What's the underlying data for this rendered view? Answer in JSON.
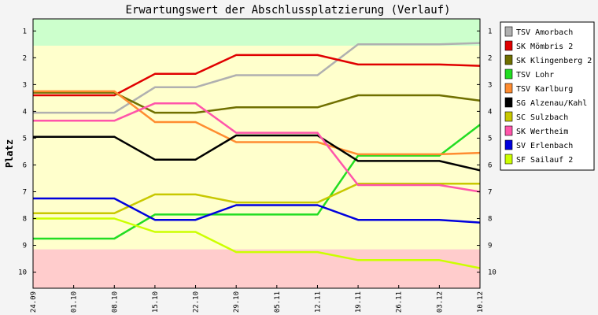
{
  "chart_data": {
    "type": "line",
    "title": "Erwartungswert der Abschlussplatzierung (Verlauf)",
    "xlabel": "",
    "ylabel": "Platz",
    "ylim": [
      0.55,
      10.6
    ],
    "y_inverted": true,
    "yticks": [
      1,
      2,
      3,
      4,
      5,
      6,
      7,
      8,
      9,
      10
    ],
    "categories": [
      "24.09",
      "01.10",
      "08.10",
      "15.10",
      "22.10",
      "29.10",
      "05.11",
      "12.11",
      "19.11",
      "26.11",
      "03.12",
      "10.12"
    ],
    "zones": [
      {
        "from": 0.55,
        "to": 1.55,
        "color": "#ccffcc"
      },
      {
        "from": 1.55,
        "to": 9.15,
        "color": "#ffffcc"
      },
      {
        "from": 9.15,
        "to": 10.6,
        "color": "#ffcccc"
      }
    ],
    "grid": false,
    "legend_position": "right",
    "series": [
      {
        "name": "TSV Amorbach",
        "color": "#b0b0b0",
        "values": [
          4.05,
          4.05,
          4.05,
          3.1,
          3.1,
          2.65,
          2.65,
          2.65,
          1.5,
          1.5,
          1.5,
          1.45
        ]
      },
      {
        "name": "SK Mömbris 2",
        "color": "#e00000",
        "values": [
          3.4,
          3.4,
          3.4,
          2.6,
          2.6,
          1.9,
          1.9,
          1.9,
          2.25,
          2.25,
          2.25,
          2.3
        ]
      },
      {
        "name": "SK Klingenberg 2",
        "color": "#707000",
        "values": [
          3.3,
          3.3,
          3.3,
          4.05,
          4.05,
          3.85,
          3.85,
          3.85,
          3.4,
          3.4,
          3.4,
          3.6
        ]
      },
      {
        "name": "TSV Lohr",
        "color": "#22dd22",
        "values": [
          8.75,
          8.75,
          8.75,
          7.85,
          7.85,
          7.85,
          7.85,
          7.85,
          5.65,
          5.65,
          5.65,
          4.5
        ]
      },
      {
        "name": "TSV Karlburg",
        "color": "#ff8c30",
        "values": [
          3.25,
          3.25,
          3.25,
          4.4,
          4.4,
          5.15,
          5.15,
          5.15,
          5.6,
          5.6,
          5.6,
          5.55
        ]
      },
      {
        "name": "SG Alzenau/Kahl",
        "color": "#000000",
        "values": [
          4.95,
          4.95,
          4.95,
          5.8,
          5.8,
          4.9,
          4.9,
          4.9,
          5.85,
          5.85,
          5.85,
          6.2
        ]
      },
      {
        "name": "SC Sulzbach",
        "color": "#c8c800",
        "values": [
          7.8,
          7.8,
          7.8,
          7.1,
          7.1,
          7.4,
          7.4,
          7.4,
          6.7,
          6.7,
          6.7,
          6.7
        ]
      },
      {
        "name": "SK Wertheim",
        "color": "#ff55aa",
        "values": [
          4.35,
          4.35,
          4.35,
          3.7,
          3.7,
          4.8,
          4.8,
          4.8,
          6.75,
          6.75,
          6.75,
          7.0
        ]
      },
      {
        "name": "SV Erlenbach",
        "color": "#0000dd",
        "values": [
          7.25,
          7.25,
          7.25,
          8.05,
          8.05,
          7.5,
          7.5,
          7.5,
          8.05,
          8.05,
          8.05,
          8.15
        ]
      },
      {
        "name": "SF Sailauf 2",
        "color": "#ccff00",
        "values": [
          8.0,
          8.0,
          8.0,
          8.5,
          8.5,
          9.25,
          9.25,
          9.25,
          9.55,
          9.55,
          9.55,
          9.85
        ]
      }
    ]
  }
}
